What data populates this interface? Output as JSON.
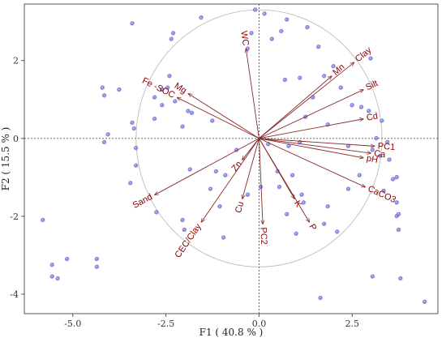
{
  "chart_data": {
    "type": "scatter",
    "title": "",
    "xlabel": "F1 ( 40.8 % )",
    "ylabel": "F2 ( 15.5 % )",
    "xlim": [
      -6.3,
      4.8
    ],
    "ylim": [
      -4.5,
      3.45
    ],
    "xticks": [
      -5.0,
      -2.5,
      0.0,
      2.5
    ],
    "yticks": [
      -4,
      -2,
      0,
      2
    ],
    "x_tick_labels": [
      "-5.0",
      "-2.5",
      "0.0",
      "2.5"
    ],
    "y_tick_labels": [
      "-4",
      "-2",
      "0",
      "2"
    ],
    "grid": false,
    "reference_lines": [
      "x = 0 (dotted)",
      "y = 0 (dotted)"
    ],
    "correlation_circle_radius": 3.3,
    "point_color": "#5a5ad2",
    "arrow_color": "#8b2a2a",
    "label_color": "#8b0000",
    "loadings": [
      {
        "name": "WC",
        "x": -0.35,
        "y": 2.3
      },
      {
        "name": "Mn",
        "x": 1.95,
        "y": 1.6
      },
      {
        "name": "Clay",
        "x": 2.55,
        "y": 1.95
      },
      {
        "name": "Silt",
        "x": 2.8,
        "y": 1.25
      },
      {
        "name": "Cd",
        "x": 2.8,
        "y": 0.5
      },
      {
        "name": "PC1",
        "x": 3.1,
        "y": -0.2
      },
      {
        "name": "Ca",
        "x": 3.0,
        "y": -0.38
      },
      {
        "name": "pH",
        "x": 2.8,
        "y": -0.5
      },
      {
        "name": "CaCO3",
        "x": 2.85,
        "y": -1.25
      },
      {
        "name": "P",
        "x": 1.35,
        "y": -2.15
      },
      {
        "name": "K",
        "x": 0.95,
        "y": -1.55
      },
      {
        "name": "PC2",
        "x": 0.1,
        "y": -2.2
      },
      {
        "name": "Cu",
        "x": -0.45,
        "y": -1.55
      },
      {
        "name": "Zn",
        "x": -0.45,
        "y": -0.55
      },
      {
        "name": "CEC/Clay",
        "x": -1.55,
        "y": -2.15
      },
      {
        "name": "Sand",
        "x": -2.8,
        "y": -1.45
      },
      {
        "name": "Mg",
        "x": -1.9,
        "y": 1.15
      },
      {
        "name": "Fe -SOC",
        "x": -2.2,
        "y": 1.05
      }
    ],
    "points": [
      {
        "x": -0.1,
        "y": 3.3
      },
      {
        "x": 0.15,
        "y": 3.2
      },
      {
        "x": 0.75,
        "y": 3.05
      },
      {
        "x": -3.4,
        "y": 2.95
      },
      {
        "x": -1.55,
        "y": 3.1
      },
      {
        "x": 1.3,
        "y": 2.85
      },
      {
        "x": 0.6,
        "y": 2.75
      },
      {
        "x": -0.2,
        "y": 2.7
      },
      {
        "x": -2.3,
        "y": 2.7
      },
      {
        "x": -2.35,
        "y": 2.55
      },
      {
        "x": 1.6,
        "y": 2.35
      },
      {
        "x": -0.3,
        "y": 2.3
      },
      {
        "x": 0.35,
        "y": 2.55
      },
      {
        "x": 3.0,
        "y": 2.05
      },
      {
        "x": 2.0,
        "y": 1.85
      },
      {
        "x": 1.75,
        "y": 1.6
      },
      {
        "x": 1.1,
        "y": 1.55
      },
      {
        "x": -2.4,
        "y": 1.6
      },
      {
        "x": -4.2,
        "y": 1.3
      },
      {
        "x": -4.15,
        "y": 1.1
      },
      {
        "x": -3.75,
        "y": 1.25
      },
      {
        "x": -2.6,
        "y": 1.25
      },
      {
        "x": -2.45,
        "y": 1.3
      },
      {
        "x": -2.8,
        "y": 1.05
      },
      {
        "x": -2.6,
        "y": 0.85
      },
      {
        "x": -2.25,
        "y": 0.95
      },
      {
        "x": -1.9,
        "y": 0.7
      },
      {
        "x": -1.8,
        "y": 0.65
      },
      {
        "x": 2.2,
        "y": 1.3
      },
      {
        "x": 1.45,
        "y": 1.05
      },
      {
        "x": 0.7,
        "y": 1.5
      },
      {
        "x": 2.5,
        "y": 0.85
      },
      {
        "x": 2.75,
        "y": 0.8
      },
      {
        "x": 2.95,
        "y": 0.7
      },
      {
        "x": 1.25,
        "y": 0.55
      },
      {
        "x": 1.85,
        "y": 0.35
      },
      {
        "x": -2.8,
        "y": 0.5
      },
      {
        "x": -3.4,
        "y": 0.4
      },
      {
        "x": -3.35,
        "y": 0.25
      },
      {
        "x": -2.05,
        "y": 0.3
      },
      {
        "x": -1.25,
        "y": 0.45
      },
      {
        "x": 3.3,
        "y": 0.45
      },
      {
        "x": -4.05,
        "y": 0.1
      },
      {
        "x": -4.15,
        "y": -0.1
      },
      {
        "x": -3.3,
        "y": -0.25
      },
      {
        "x": 3.15,
        "y": 0.0
      },
      {
        "x": 3.45,
        "y": -0.1
      },
      {
        "x": 2.4,
        "y": -0.2
      },
      {
        "x": 0.25,
        "y": -0.15
      },
      {
        "x": 0.8,
        "y": -0.2
      },
      {
        "x": 1.1,
        "y": -0.1
      },
      {
        "x": -0.6,
        "y": -0.3
      },
      {
        "x": 3.05,
        "y": -0.3
      },
      {
        "x": 3.25,
        "y": -0.45
      },
      {
        "x": 3.5,
        "y": -0.55
      },
      {
        "x": -3.3,
        "y": -0.7
      },
      {
        "x": -1.85,
        "y": -0.8
      },
      {
        "x": -1.15,
        "y": -0.85
      },
      {
        "x": -0.9,
        "y": -0.95
      },
      {
        "x": 0.5,
        "y": -0.85
      },
      {
        "x": 0.9,
        "y": -0.95
      },
      {
        "x": 2.7,
        "y": -0.95
      },
      {
        "x": 3.6,
        "y": -1.05
      },
      {
        "x": 3.7,
        "y": -1.0
      },
      {
        "x": -3.45,
        "y": -1.15
      },
      {
        "x": -1.3,
        "y": -1.3
      },
      {
        "x": 0.05,
        "y": -1.25
      },
      {
        "x": 0.55,
        "y": -1.25
      },
      {
        "x": 1.15,
        "y": -1.45
      },
      {
        "x": 2.4,
        "y": -1.3
      },
      {
        "x": 3.35,
        "y": -1.35
      },
      {
        "x": -0.3,
        "y": -1.45
      },
      {
        "x": -1.05,
        "y": -1.75
      },
      {
        "x": 1.2,
        "y": -1.65
      },
      {
        "x": 1.85,
        "y": -1.75
      },
      {
        "x": 3.7,
        "y": -1.65
      },
      {
        "x": -2.75,
        "y": -1.9
      },
      {
        "x": 3.7,
        "y": -2.0
      },
      {
        "x": 3.75,
        "y": -1.95
      },
      {
        "x": -5.8,
        "y": -2.1
      },
      {
        "x": -2.05,
        "y": -2.1
      },
      {
        "x": 0.75,
        "y": -1.95
      },
      {
        "x": 1.75,
        "y": -2.2
      },
      {
        "x": -2.0,
        "y": -2.35
      },
      {
        "x": 1.0,
        "y": -2.45
      },
      {
        "x": 2.1,
        "y": -2.4
      },
      {
        "x": 3.75,
        "y": -2.35
      },
      {
        "x": -0.95,
        "y": -2.55
      },
      {
        "x": -5.15,
        "y": -3.1
      },
      {
        "x": -4.35,
        "y": -3.1
      },
      {
        "x": -5.55,
        "y": -3.25
      },
      {
        "x": -4.35,
        "y": -3.3
      },
      {
        "x": -5.55,
        "y": -3.55
      },
      {
        "x": -5.4,
        "y": -3.6
      },
      {
        "x": 3.05,
        "y": -3.55
      },
      {
        "x": 3.8,
        "y": -3.6
      },
      {
        "x": 1.65,
        "y": -4.1
      },
      {
        "x": 4.45,
        "y": -4.2
      }
    ]
  }
}
